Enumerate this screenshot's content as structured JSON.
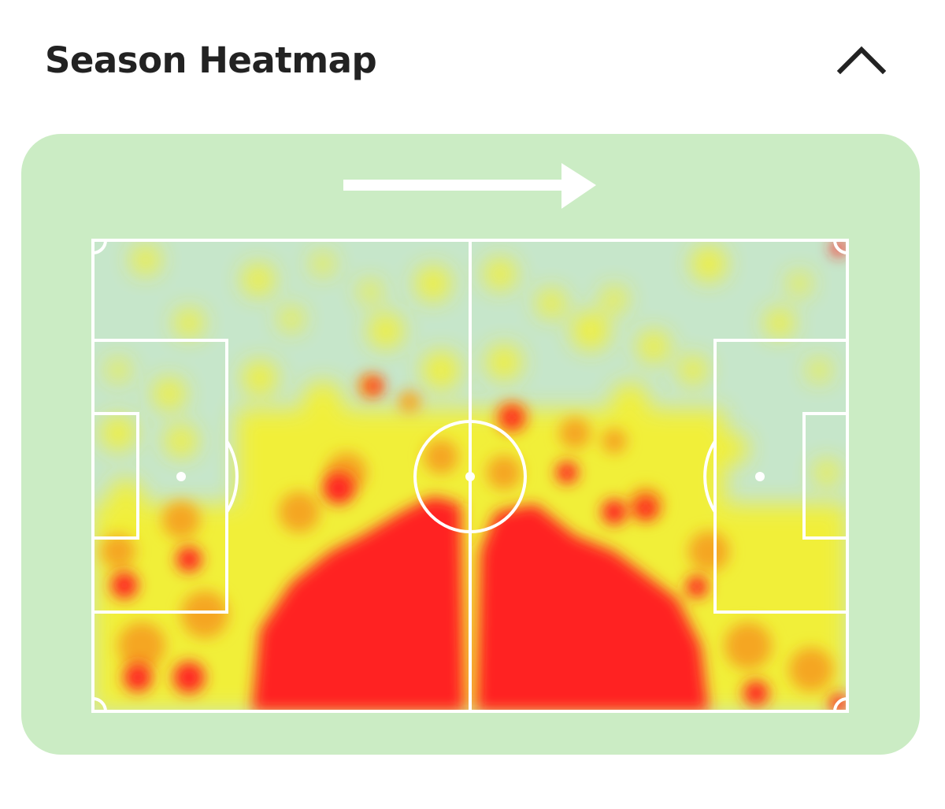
{
  "header": {
    "title": "Season Heatmap"
  }
}
